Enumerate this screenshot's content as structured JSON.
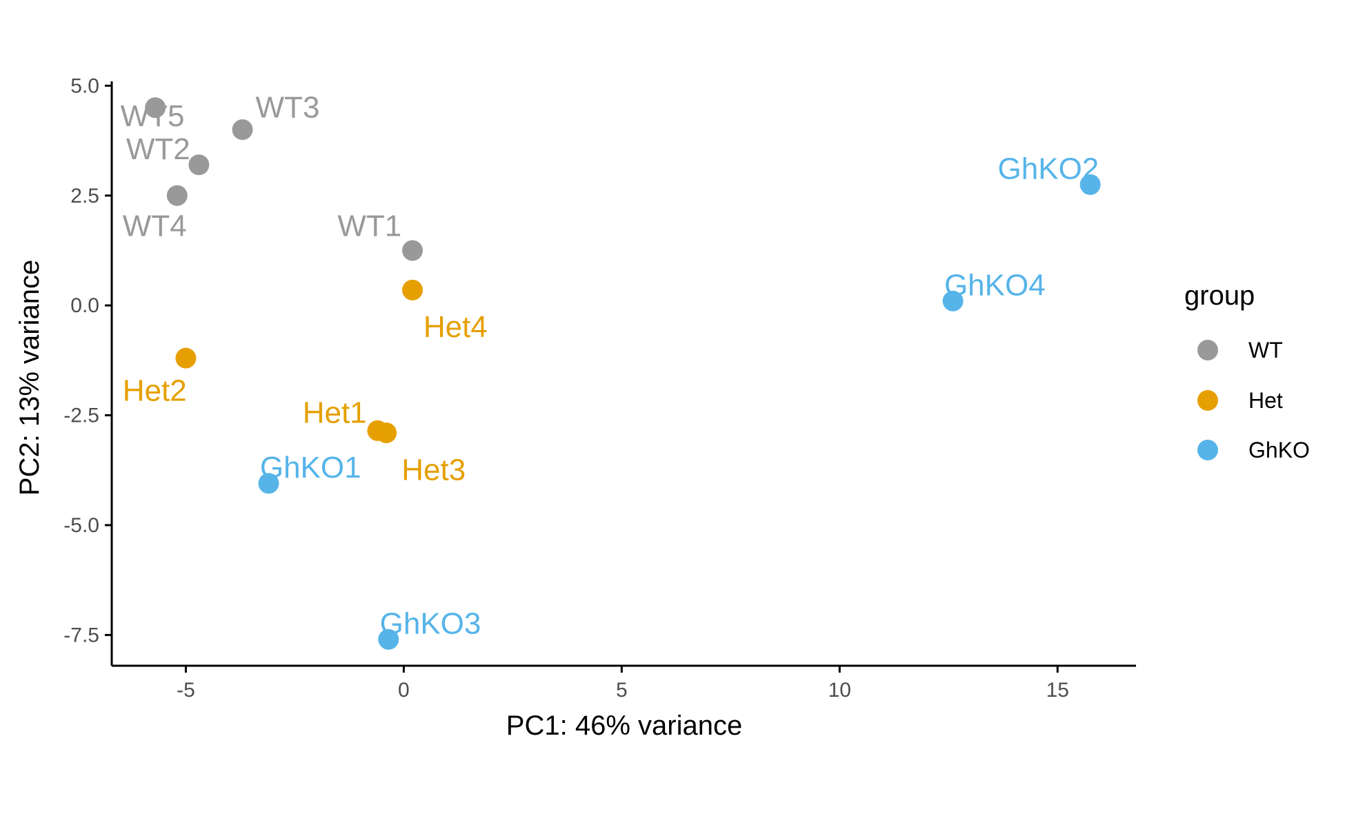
{
  "chart_data": {
    "type": "scatter",
    "title": "",
    "xlabel": "PC1: 46% variance",
    "ylabel": "PC2: 13% variance",
    "xlim": [
      -6.7,
      16.8
    ],
    "ylim": [
      -8.2,
      5.1
    ],
    "x_ticks": [
      -5,
      0,
      5,
      10,
      15
    ],
    "x_tick_labels": [
      "-5",
      "0",
      "5",
      "10",
      "15"
    ],
    "y_ticks": [
      5.0,
      2.5,
      0.0,
      -2.5,
      -5.0,
      -7.5
    ],
    "y_tick_labels": [
      "5.0",
      "2.5",
      "0.0",
      "-2.5",
      "-5.0",
      "-7.5"
    ],
    "grid": false,
    "legend": {
      "title": "group",
      "placement": "right",
      "entries": [
        "WT",
        "Het",
        "GhKO"
      ]
    },
    "groups": [
      {
        "name": "WT",
        "color": "#999999"
      },
      {
        "name": "Het",
        "color": "#E69F00"
      },
      {
        "name": "GhKO",
        "color": "#56B4E9"
      }
    ],
    "points": [
      {
        "label": "WT1",
        "group": "WT",
        "x": 0.2,
        "y": 1.25,
        "label_anchor": "end",
        "label_dx": -0.25,
        "label_dy": 0.55
      },
      {
        "label": "WT2",
        "group": "WT",
        "x": -4.7,
        "y": 3.2,
        "label_anchor": "end",
        "label_dx": -0.2,
        "label_dy": 0.35
      },
      {
        "label": "WT3",
        "group": "WT",
        "x": -3.7,
        "y": 4.0,
        "label_anchor": "start",
        "label_dx": 0.3,
        "label_dy": 0.5
      },
      {
        "label": "WT4",
        "group": "WT",
        "x": -5.2,
        "y": 2.5,
        "label_anchor": "start",
        "label_dx": -1.25,
        "label_dy": -0.7
      },
      {
        "label": "WT5",
        "group": "WT",
        "x": -5.7,
        "y": 4.5,
        "label_anchor": "start",
        "label_dx": -0.8,
        "label_dy": -0.2
      },
      {
        "label": "Het1",
        "group": "Het",
        "x": -0.6,
        "y": -2.85,
        "label_anchor": "end",
        "label_dx": -0.25,
        "label_dy": 0.4
      },
      {
        "label": "Het2",
        "group": "Het",
        "x": -5.0,
        "y": -1.2,
        "label_anchor": "start",
        "label_dx": -1.45,
        "label_dy": -0.75
      },
      {
        "label": "Het3",
        "group": "Het",
        "x": -0.4,
        "y": -2.9,
        "label_anchor": "start",
        "label_dx": 0.35,
        "label_dy": -0.85
      },
      {
        "label": "Het4",
        "group": "Het",
        "x": 0.2,
        "y": 0.35,
        "label_anchor": "start",
        "label_dx": 0.25,
        "label_dy": -0.85
      },
      {
        "label": "GhKO1",
        "group": "GhKO",
        "x": -3.1,
        "y": -4.05,
        "label_anchor": "start",
        "label_dx": -0.2,
        "label_dy": 0.35
      },
      {
        "label": "GhKO2",
        "group": "GhKO",
        "x": 15.75,
        "y": 2.75,
        "label_anchor": "end",
        "label_dx": 0.2,
        "label_dy": 0.35
      },
      {
        "label": "GhKO3",
        "group": "GhKO",
        "x": -0.35,
        "y": -7.6,
        "label_anchor": "start",
        "label_dx": -0.2,
        "label_dy": 0.35
      },
      {
        "label": "GhKO4",
        "group": "GhKO",
        "x": 12.6,
        "y": 0.1,
        "label_anchor": "start",
        "label_dx": -0.2,
        "label_dy": 0.35
      }
    ]
  }
}
